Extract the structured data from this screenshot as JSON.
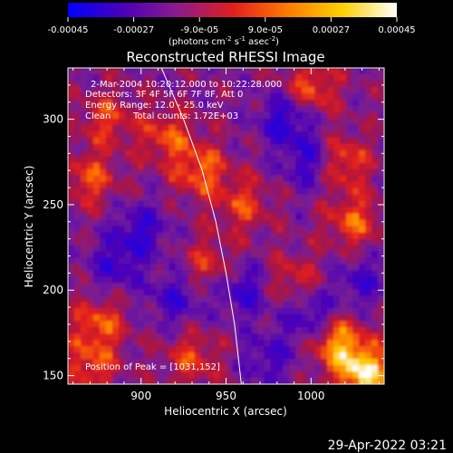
{
  "colorbar": {
    "tick_labels": [
      "-0.00045",
      "-0.00027",
      "-9.0e-05",
      "9.0e-05",
      "0.00027",
      "0.00045"
    ],
    "tick_values": [
      -0.00045,
      -0.00027,
      -9e-05,
      9e-05,
      0.00027,
      0.00045
    ],
    "range": [
      -0.00045,
      0.00045
    ],
    "unit_prefix": "(photons cm",
    "unit_exp1": "-2",
    "unit_s": " s",
    "unit_exp2": "-1",
    "unit_asec": " asec",
    "unit_exp3": "-2",
    "unit_close": ")",
    "colors": [
      "#0000ff",
      "#4b00b8",
      "#8c1a8c",
      "#e01e1e",
      "#ff7a00",
      "#ffd000",
      "#ffffff"
    ]
  },
  "chart_data": {
    "type": "heatmap",
    "title": "Reconstructed RHESSI Image",
    "xlabel": "Heliocentric X (arcsec)",
    "ylabel": "Heliocentric Y (arcsec)",
    "xlim": [
      857,
      1043
    ],
    "ylim": [
      145,
      330
    ],
    "x_ticks": [
      900,
      950,
      1000
    ],
    "y_ticks": [
      150,
      200,
      250,
      300
    ],
    "limb_curve": [
      [
        912,
        330
      ],
      [
        925,
        300
      ],
      [
        936,
        270
      ],
      [
        944,
        240
      ],
      [
        950,
        210
      ],
      [
        955,
        180
      ],
      [
        959,
        145
      ]
    ],
    "hot_spots": [
      {
        "x": 1031,
        "y": 152,
        "level": 1.0
      },
      {
        "x": 1015,
        "y": 170,
        "level": 0.75
      },
      {
        "x": 1000,
        "y": 318,
        "level": 0.55
      },
      {
        "x": 1018,
        "y": 275,
        "level": 0.6
      },
      {
        "x": 1025,
        "y": 240,
        "level": 0.55
      },
      {
        "x": 935,
        "y": 270,
        "level": 0.6
      },
      {
        "x": 915,
        "y": 290,
        "level": 0.5
      },
      {
        "x": 870,
        "y": 265,
        "level": 0.5
      },
      {
        "x": 880,
        "y": 300,
        "level": 0.45
      },
      {
        "x": 875,
        "y": 180,
        "level": 0.55
      },
      {
        "x": 870,
        "y": 155,
        "level": 0.5
      },
      {
        "x": 930,
        "y": 160,
        "level": 0.45
      },
      {
        "x": 960,
        "y": 250,
        "level": 0.45
      },
      {
        "x": 990,
        "y": 205,
        "level": 0.4
      },
      {
        "x": 940,
        "y": 215,
        "level": 0.4
      }
    ],
    "cold_spots": [
      {
        "x": 985,
        "y": 300,
        "level": -0.6
      },
      {
        "x": 1000,
        "y": 275,
        "level": -0.55
      },
      {
        "x": 900,
        "y": 235,
        "level": -0.5
      },
      {
        "x": 960,
        "y": 200,
        "level": -0.5
      },
      {
        "x": 1000,
        "y": 185,
        "level": -0.55
      },
      {
        "x": 885,
        "y": 215,
        "level": -0.45
      },
      {
        "x": 975,
        "y": 160,
        "level": -0.4
      },
      {
        "x": 920,
        "y": 195,
        "level": -0.45
      },
      {
        "x": 1030,
        "y": 205,
        "level": -0.4
      }
    ]
  },
  "annotations": {
    "time_range": "2-Mar-2004 10:20:12.000 to 10:22:28.000",
    "detectors": "Detectors: 3F 4F 5F 6F 7F 8F, Att 0",
    "energy": "Energy Range: 12.0 - 25.0 keV",
    "clean": "Clean",
    "counts": "Total counts: 1.72E+03",
    "peak": "Position of Peak = [1031,152]"
  },
  "timestamp": "29-Apr-2022 03:21"
}
